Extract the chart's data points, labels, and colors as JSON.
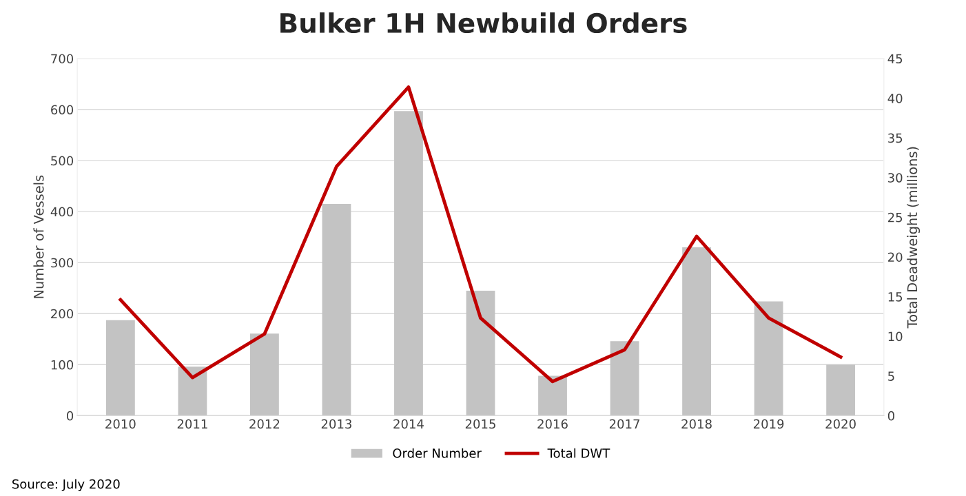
{
  "chart_data": {
    "type": "bar",
    "title": "Bulker 1H Newbuild Orders",
    "ylabel": "Number of Vessels",
    "y2label": "Total Deadweight (millions)",
    "categories": [
      "2010",
      "2011",
      "2012",
      "2013",
      "2014",
      "2015",
      "2016",
      "2017",
      "2018",
      "2019",
      "2020"
    ],
    "series": [
      {
        "name": "Order Number",
        "color": "#c3c3c3",
        "values": [
          187,
          96,
          161,
          415,
          597,
          245,
          78,
          146,
          330,
          224,
          100
        ]
      },
      {
        "name": "Total DWT",
        "type": "line",
        "axis": "y2",
        "color": "#c00000",
        "values": [
          14.6,
          4.8,
          10.3,
          31.4,
          41.4,
          12.3,
          4.3,
          8.3,
          22.6,
          12.3,
          7.4
        ]
      }
    ],
    "ylim": [
      0,
      700
    ],
    "yticks": [
      0,
      100,
      200,
      300,
      400,
      500,
      600,
      700
    ],
    "y2lim": [
      0,
      45
    ],
    "y2ticks": [
      0,
      5,
      10,
      15,
      20,
      25,
      30,
      35,
      40,
      45
    ],
    "grid": "y",
    "legend": "bottom",
    "annotations": [
      "Source: July 2020"
    ]
  }
}
